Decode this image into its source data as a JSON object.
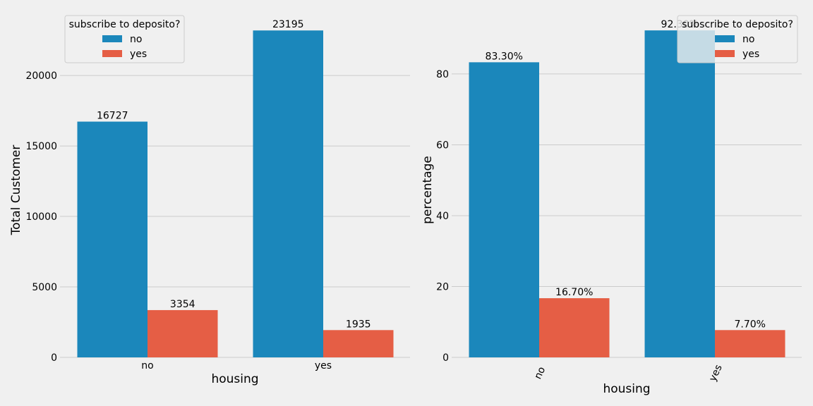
{
  "chart_data": [
    {
      "type": "bar",
      "categories": [
        "no",
        "yes"
      ],
      "series": [
        {
          "name": "no",
          "values": [
            16727,
            23195
          ]
        },
        {
          "name": "yes",
          "values": [
            3354,
            1935
          ]
        }
      ],
      "bar_labels": [
        [
          "16727",
          "23195"
        ],
        [
          "3354",
          "1935"
        ]
      ],
      "xlabel": "housing",
      "ylabel": "Total Customer",
      "ylim": [
        0,
        24356
      ],
      "yticks": [
        "0",
        "5000",
        "10000",
        "15000",
        "20000"
      ],
      "grid": true,
      "legend": {
        "title": "subscribe to deposito?",
        "placement": "top-left",
        "entries": [
          "no",
          "yes"
        ]
      }
    },
    {
      "type": "bar",
      "categories": [
        "no",
        "yes"
      ],
      "series": [
        {
          "name": "no",
          "values": [
            83.3,
            92.3
          ]
        },
        {
          "name": "yes",
          "values": [
            16.7,
            7.7
          ]
        }
      ],
      "bar_labels": [
        [
          "83.30%",
          "92.30%"
        ],
        [
          "16.70%",
          "7.70%"
        ]
      ],
      "xlabel": "housing",
      "ylabel": "percentage",
      "ylim": [
        0,
        96.9
      ],
      "yticks": [
        "0",
        "20",
        "40",
        "60",
        "80"
      ],
      "xtick_rotation_deg": 65,
      "grid": true,
      "legend": {
        "title": "subscribe to deposito?",
        "placement": "top-right",
        "entries": [
          "no",
          "yes"
        ]
      }
    }
  ],
  "colors": {
    "no": "#1b87bb",
    "yes": "#e55e45",
    "grid": "#cbcbcb",
    "background": "#f0f0f0"
  }
}
